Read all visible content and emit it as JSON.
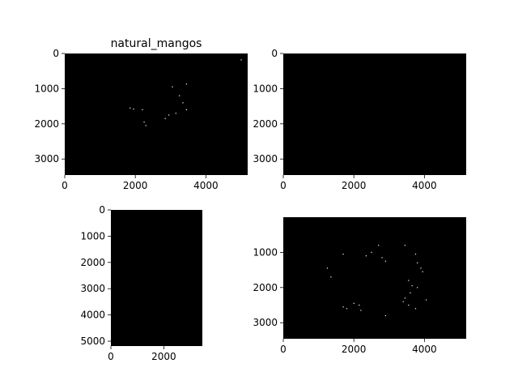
{
  "chart_data": [
    {
      "type": "scatter",
      "title": "natural_mangos",
      "xlim": [
        0,
        5184
      ],
      "ylim": [
        3456,
        0
      ],
      "xticks": [
        0,
        2000,
        4000
      ],
      "yticks": [
        0,
        1000,
        2000,
        3000
      ],
      "background": "#000000",
      "point_color": "#ffffff",
      "points": [
        [
          5000,
          180
        ],
        [
          3450,
          870
        ],
        [
          3050,
          950
        ],
        [
          3250,
          1200
        ],
        [
          3350,
          1400
        ],
        [
          3450,
          1600
        ],
        [
          3150,
          1700
        ],
        [
          2950,
          1750
        ],
        [
          2850,
          1850
        ],
        [
          1850,
          1550
        ],
        [
          1950,
          1580
        ],
        [
          2200,
          1600
        ],
        [
          2250,
          1950
        ],
        [
          2300,
          2050
        ]
      ]
    },
    {
      "type": "scatter",
      "title": "",
      "xlim": [
        0,
        5184
      ],
      "ylim": [
        3456,
        0
      ],
      "xticks": [
        0,
        2000,
        4000
      ],
      "yticks": [
        0,
        1000,
        2000,
        3000
      ],
      "background": "#000000",
      "point_color": "#ffffff",
      "points": []
    },
    {
      "type": "scatter",
      "title": "",
      "xlim": [
        0,
        3456
      ],
      "ylim": [
        5184,
        0
      ],
      "xticks": [
        0,
        2000
      ],
      "yticks": [
        0,
        1000,
        2000,
        3000,
        4000,
        5000
      ],
      "background": "#000000",
      "point_color": "#ffffff",
      "points": []
    },
    {
      "type": "scatter",
      "title": "",
      "xlim": [
        0,
        5184
      ],
      "ylim": [
        3456,
        0
      ],
      "xticks": [
        0,
        2000,
        4000
      ],
      "yticks": [
        1000,
        2000,
        3000
      ],
      "background": "#000000",
      "point_color": "#ffffff",
      "points": [
        [
          1250,
          1450
        ],
        [
          1350,
          1700
        ],
        [
          1700,
          1050
        ],
        [
          2350,
          1100
        ],
        [
          2500,
          1000
        ],
        [
          2700,
          800
        ],
        [
          2800,
          1150
        ],
        [
          2900,
          1250
        ],
        [
          3450,
          800
        ],
        [
          3750,
          1050
        ],
        [
          3800,
          1300
        ],
        [
          3900,
          1450
        ],
        [
          3950,
          1550
        ],
        [
          3550,
          1800
        ],
        [
          3650,
          1950
        ],
        [
          3800,
          2000
        ],
        [
          3600,
          2150
        ],
        [
          3450,
          2300
        ],
        [
          3400,
          2400
        ],
        [
          3550,
          2500
        ],
        [
          3750,
          2600
        ],
        [
          4050,
          2350
        ],
        [
          2000,
          2450
        ],
        [
          2150,
          2500
        ],
        [
          1700,
          2550
        ],
        [
          1800,
          2600
        ],
        [
          2200,
          2650
        ],
        [
          2900,
          2800
        ]
      ]
    }
  ]
}
